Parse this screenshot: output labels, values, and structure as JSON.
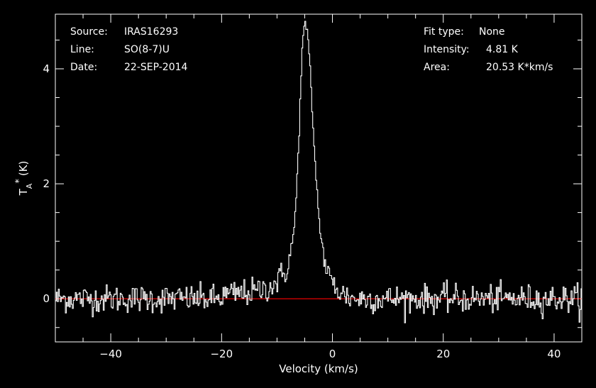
{
  "header_left": [
    {
      "label": "Source:",
      "value": "IRAS16293"
    },
    {
      "label": "Line:",
      "value": "SO(8-7)U"
    },
    {
      "label": "Date:",
      "value": "22-SEP-2014"
    }
  ],
  "header_right": [
    {
      "label": "Fit type:",
      "value": "None"
    },
    {
      "label": "Intensity:",
      "value": "4.81 K"
    },
    {
      "label": "Area:",
      "value": "20.53 K*km/s"
    }
  ],
  "colors": {
    "background": "#000000",
    "spectrum": "#ffffff",
    "baseline": "#ff0000",
    "axes": "#ffffff"
  },
  "chart_data": {
    "type": "line",
    "title": "",
    "xlabel": "Velocity (km/s)",
    "ylabel": "T_A* (K)",
    "ylabel_main": "T",
    "ylabel_sub": "A",
    "ylabel_sup": "*",
    "ylabel_unit": "(K)",
    "xlim": [
      -50,
      45
    ],
    "ylim": [
      -0.75,
      4.95
    ],
    "xticks": [
      -40,
      -20,
      0,
      20,
      40
    ],
    "xtick_labels": [
      "−40",
      "−20",
      "0",
      "20",
      "40"
    ],
    "yticks": [
      0,
      2,
      4
    ],
    "ytick_labels": [
      "0",
      "2",
      "4"
    ],
    "grid": false,
    "baseline_y": 0,
    "series": [
      {
        "style": "step",
        "x": [
          -20,
          -18,
          -16,
          -14,
          -12,
          -11,
          -10,
          -9,
          -8,
          -7.5,
          -7,
          -6.5,
          -6,
          -5.5,
          -5,
          -4.8,
          -4.5,
          -4,
          -3.5,
          -3,
          -2.5,
          -2,
          -1.5,
          -1,
          -0.5,
          0,
          0.5,
          1,
          2,
          3,
          4
        ],
        "y": [
          0.05,
          0.08,
          0.1,
          0.12,
          0.18,
          0.22,
          0.3,
          0.42,
          0.55,
          0.85,
          1.1,
          1.8,
          2.9,
          4.3,
          4.81,
          4.75,
          4.6,
          4.0,
          3.0,
          2.2,
          1.5,
          1.0,
          0.7,
          0.5,
          0.35,
          0.28,
          0.22,
          0.15,
          0.08,
          0.03,
          0.0
        ],
        "noise_rms": 0.12,
        "full_x_range": [
          -50,
          45
        ]
      }
    ]
  }
}
